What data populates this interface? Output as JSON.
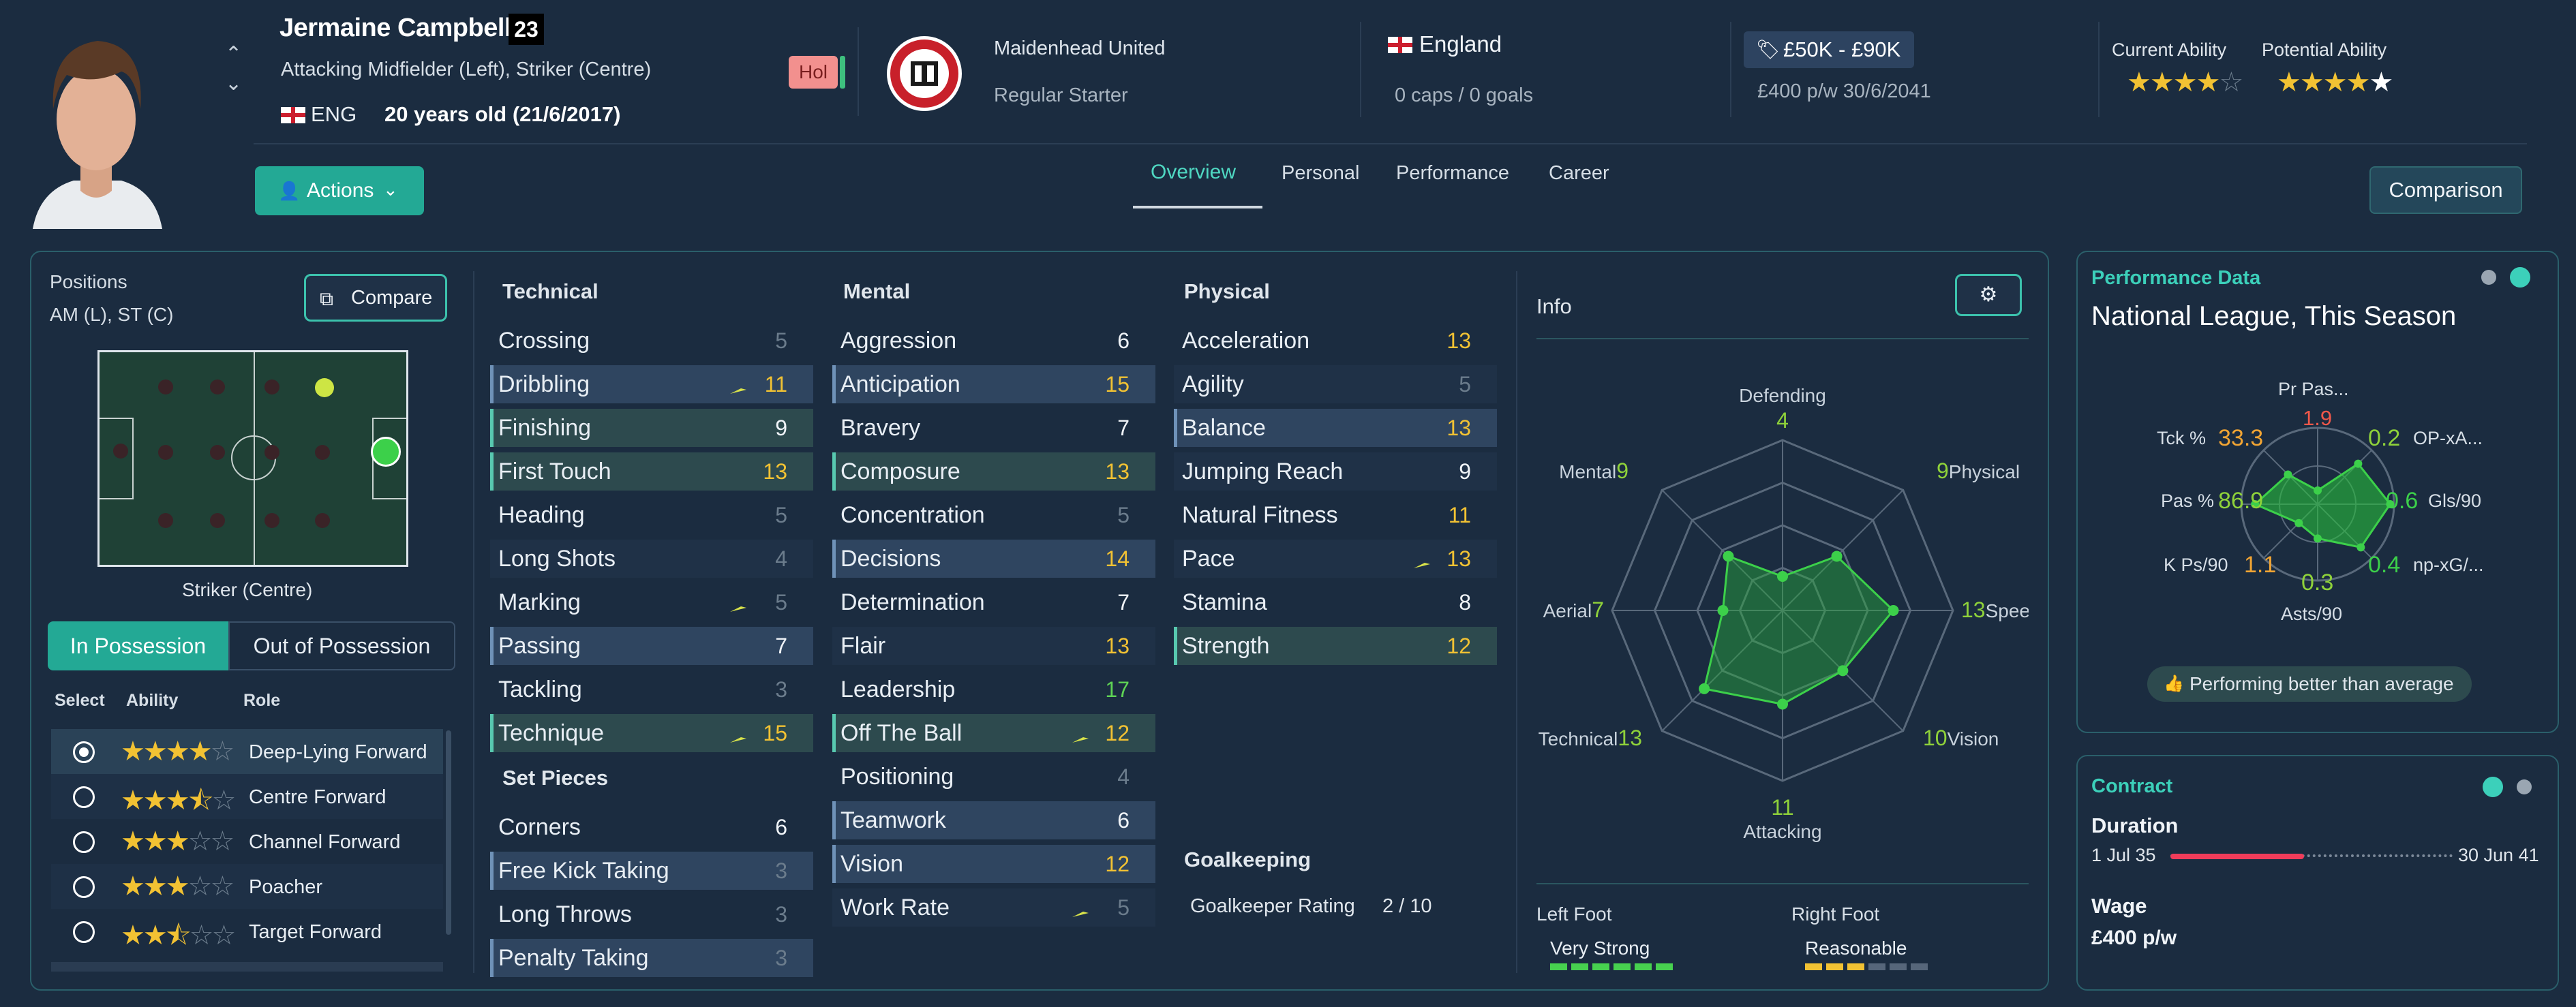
{
  "player": {
    "name": "Jermaine Campbell",
    "number": "23",
    "positions_long": "Attacking Midfielder (Left), Striker (Centre)",
    "nation_code": "ENG",
    "age": "20 years old (21/6/2017)",
    "tag": "Hol"
  },
  "club": {
    "name": "Maidenhead United",
    "status": "Regular Starter"
  },
  "nation": {
    "name": "England",
    "caps": "0 caps / 0 goals"
  },
  "value": {
    "range": "£50K - £90K",
    "wage_contract": "£400 p/w 30/6/2041"
  },
  "ability": {
    "current_label": "Current Ability",
    "potential_label": "Potential Ability",
    "current_stars": 4,
    "potential_stars": 4.5
  },
  "actions_label": "Actions",
  "comparison_label": "Comparison",
  "tabs": [
    "Overview",
    "Personal",
    "Performance",
    "Career"
  ],
  "positions": {
    "title": "Positions",
    "list": "AM (L), ST (C)",
    "compare_label": "Compare",
    "selected_position": "Striker (Centre)",
    "in_possession": "In Possession",
    "out_of_possession": "Out of Possession",
    "headers": {
      "select": "Select",
      "ability": "Ability",
      "role": "Role"
    },
    "roles": [
      {
        "name": "Deep-Lying Forward",
        "stars": 4
      },
      {
        "name": "Centre Forward",
        "stars": 3.5
      },
      {
        "name": "Channel Forward",
        "stars": 3
      },
      {
        "name": "Poacher",
        "stars": 3
      },
      {
        "name": "Target Forward",
        "stars": 2.5
      }
    ]
  },
  "attributes": {
    "technical_title": "Technical",
    "technical": [
      {
        "name": "Crossing",
        "value": "5"
      },
      {
        "name": "Dribbling",
        "value": "11"
      },
      {
        "name": "Finishing",
        "value": "9"
      },
      {
        "name": "First Touch",
        "value": "13"
      },
      {
        "name": "Heading",
        "value": "5"
      },
      {
        "name": "Long Shots",
        "value": "4"
      },
      {
        "name": "Marking",
        "value": "5"
      },
      {
        "name": "Passing",
        "value": "7"
      },
      {
        "name": "Tackling",
        "value": "3"
      },
      {
        "name": "Technique",
        "value": "15"
      }
    ],
    "set_pieces_title": "Set Pieces",
    "set_pieces": [
      {
        "name": "Corners",
        "value": "6"
      },
      {
        "name": "Free Kick Taking",
        "value": "3"
      },
      {
        "name": "Long Throws",
        "value": "3"
      },
      {
        "name": "Penalty Taking",
        "value": "3"
      }
    ],
    "mental_title": "Mental",
    "mental": [
      {
        "name": "Aggression",
        "value": "6"
      },
      {
        "name": "Anticipation",
        "value": "15"
      },
      {
        "name": "Bravery",
        "value": "7"
      },
      {
        "name": "Composure",
        "value": "13"
      },
      {
        "name": "Concentration",
        "value": "5"
      },
      {
        "name": "Decisions",
        "value": "14"
      },
      {
        "name": "Determination",
        "value": "7"
      },
      {
        "name": "Flair",
        "value": "13"
      },
      {
        "name": "Leadership",
        "value": "17"
      },
      {
        "name": "Off The Ball",
        "value": "12"
      },
      {
        "name": "Positioning",
        "value": "4"
      },
      {
        "name": "Teamwork",
        "value": "6"
      },
      {
        "name": "Vision",
        "value": "12"
      },
      {
        "name": "Work Rate",
        "value": "5"
      }
    ],
    "physical_title": "Physical",
    "physical": [
      {
        "name": "Acceleration",
        "value": "13"
      },
      {
        "name": "Agility",
        "value": "5"
      },
      {
        "name": "Balance",
        "value": "13"
      },
      {
        "name": "Jumping Reach",
        "value": "9"
      },
      {
        "name": "Natural Fitness",
        "value": "11"
      },
      {
        "name": "Pace",
        "value": "13"
      },
      {
        "name": "Stamina",
        "value": "8"
      },
      {
        "name": "Strength",
        "value": "12"
      }
    ],
    "goalkeeping_title": "Goalkeeping",
    "gk_label": "Goalkeeper Rating",
    "gk_value": "2 / 10"
  },
  "info": {
    "title": "Info",
    "radar": {
      "Defending": "4",
      "Physical": "9",
      "Speed": "13",
      "Vision": "10",
      "Attacking": "11",
      "Technical": "13",
      "Aerial": "7",
      "Mental": "9"
    },
    "left_foot_label": "Left Foot",
    "left_foot": "Very Strong",
    "right_foot_label": "Right Foot",
    "right_foot": "Reasonable"
  },
  "performance": {
    "header": "Performance Data",
    "title": "National League, This Season",
    "stats": [
      {
        "label": "Pr Pas...",
        "value": "1.9"
      },
      {
        "label": "OP-xA...",
        "value": "0.2"
      },
      {
        "label": "Gls/90",
        "value": "0.6"
      },
      {
        "label": "np-xG/...",
        "value": "0.4"
      },
      {
        "label": "Asts/90",
        "value": "0.3"
      },
      {
        "label": "K Ps/90",
        "value": "1.1"
      },
      {
        "label": "Pas %",
        "value": "86.9"
      },
      {
        "label": "Tck %",
        "value": "33.3"
      }
    ],
    "badge": "Performing better than average"
  },
  "contract": {
    "header": "Contract",
    "duration_label": "Duration",
    "start": "1 Jul 35",
    "end": "30 Jun 41",
    "wage_label": "Wage",
    "wage": "£400 p/w"
  }
}
